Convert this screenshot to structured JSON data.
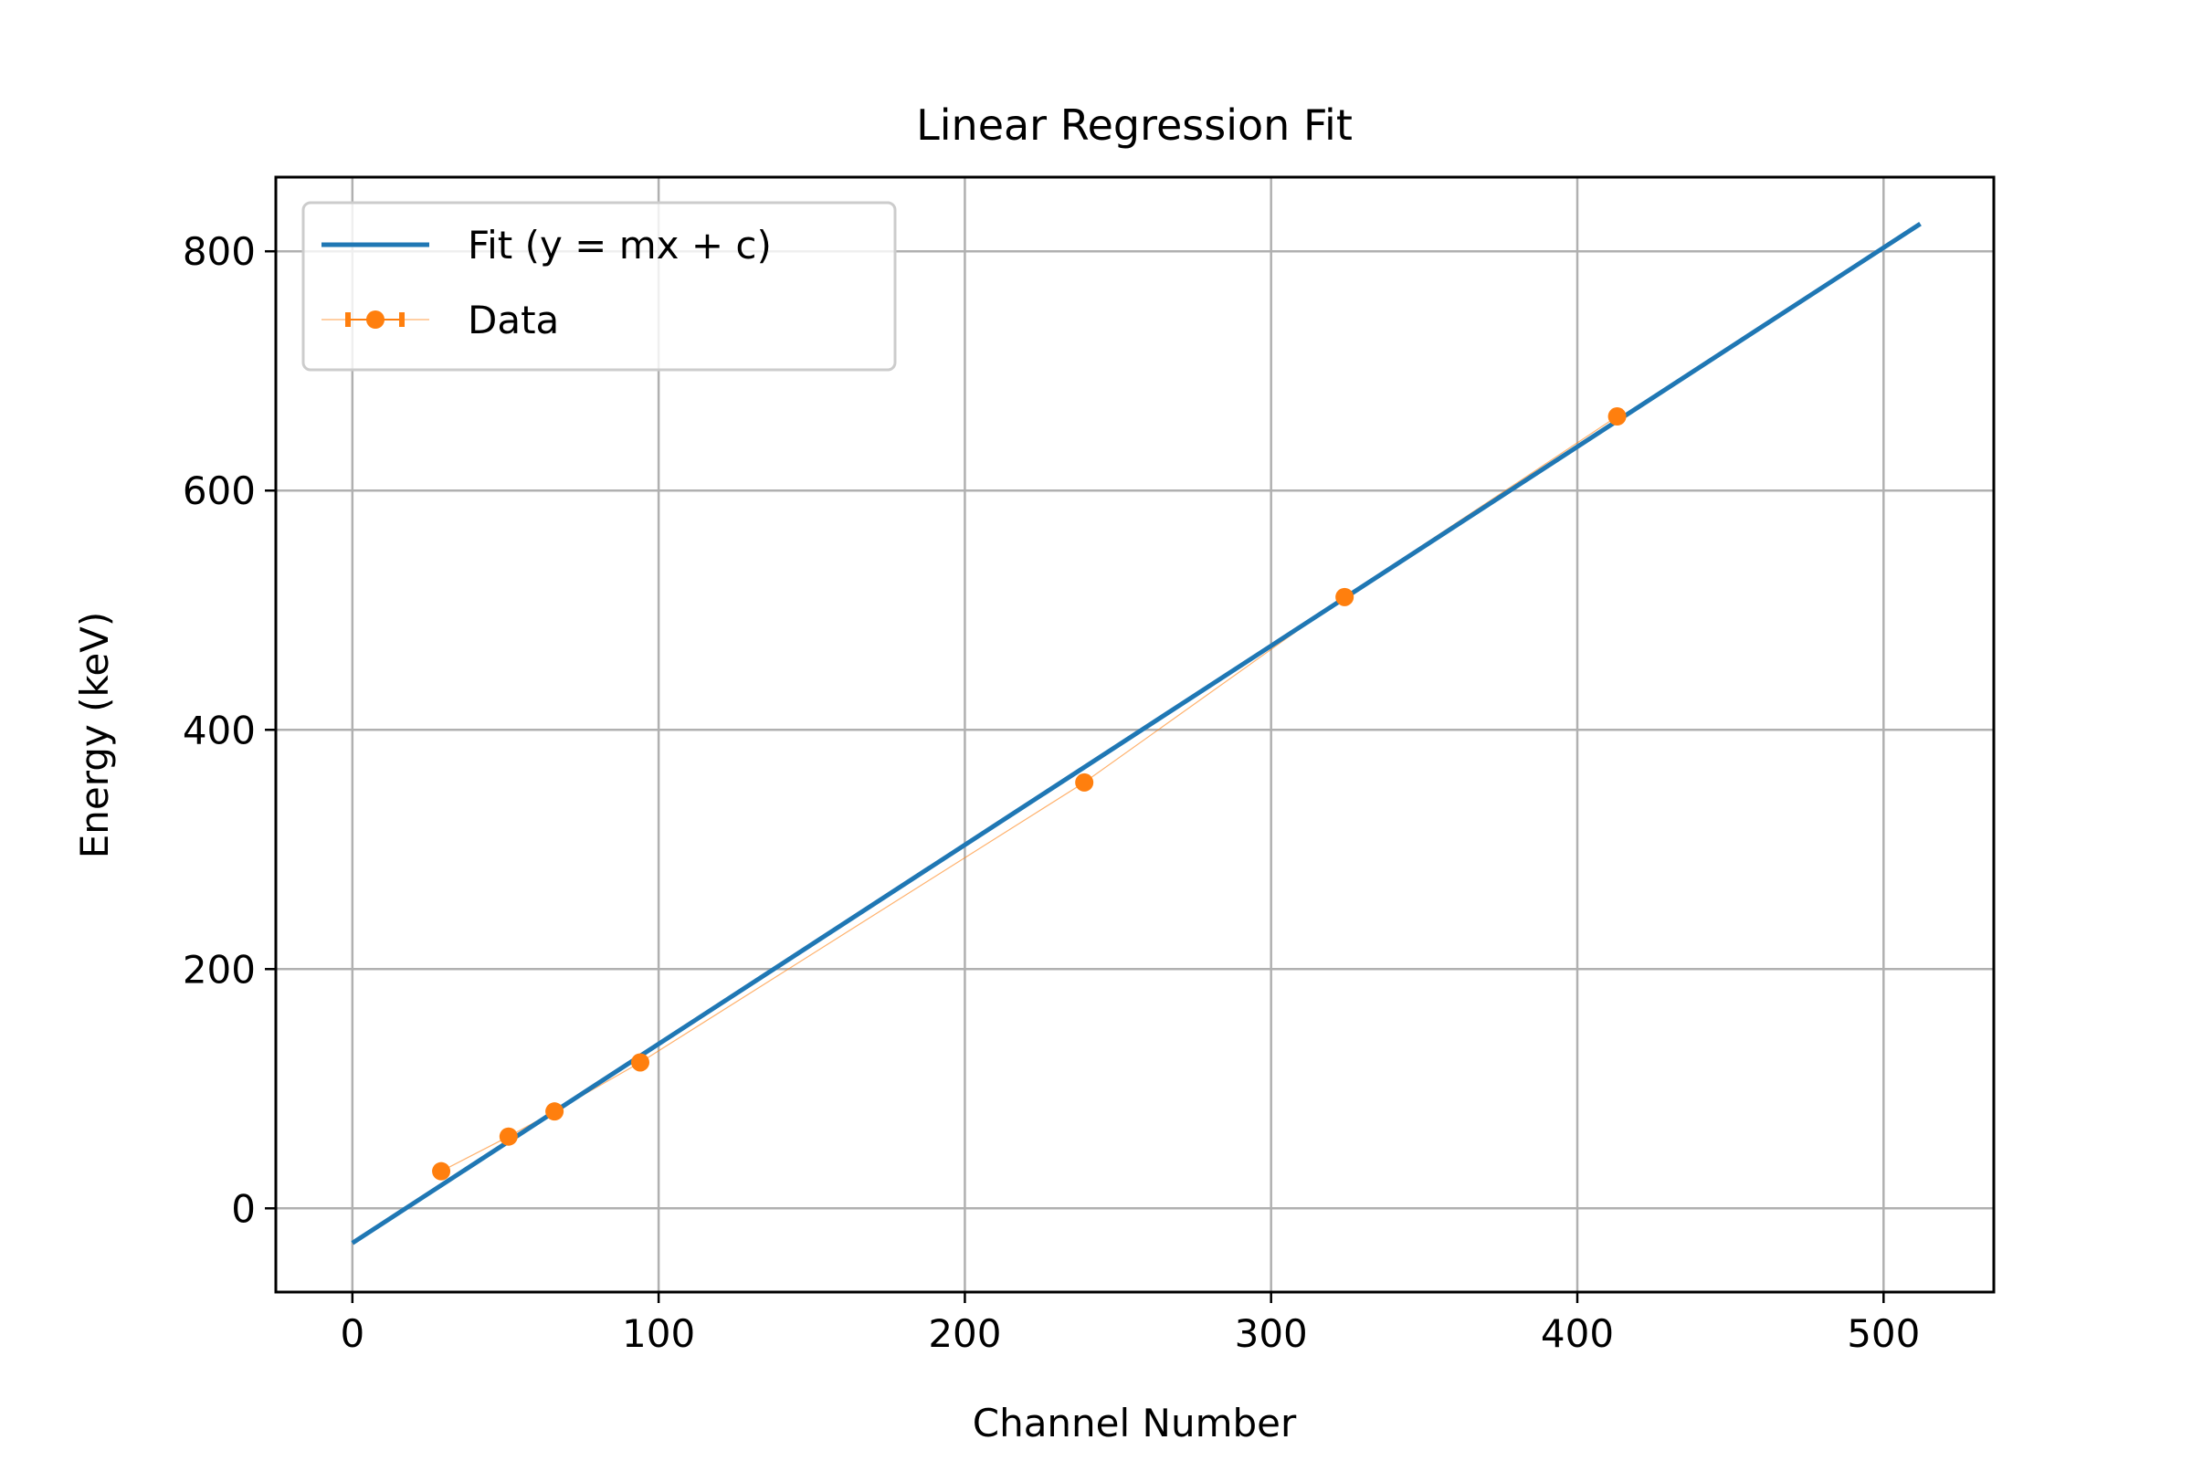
{
  "chart_data": {
    "type": "line",
    "title": "Linear Regression Fit",
    "xlabel": "Channel Number",
    "ylabel": "Energy (keV)",
    "xlim": [
      -25,
      536
    ],
    "ylim": [
      -70,
      862
    ],
    "xticks": [
      0,
      100,
      200,
      300,
      400,
      500
    ],
    "yticks": [
      0,
      200,
      400,
      600,
      800
    ],
    "grid": true,
    "legend_position": "upper-left",
    "series": [
      {
        "name": "Fit (y = mx + c)",
        "kind": "line",
        "color": "#1f77b4",
        "x": [
          0,
          512
        ],
        "y": [
          -29,
          823
        ]
      },
      {
        "name": "Data",
        "kind": "errorbar-markers",
        "color": "#ff7f0e",
        "x": [
          29,
          51,
          66,
          94,
          239,
          324,
          413
        ],
        "y": [
          31,
          60,
          81,
          122,
          356,
          511,
          662
        ]
      }
    ]
  }
}
